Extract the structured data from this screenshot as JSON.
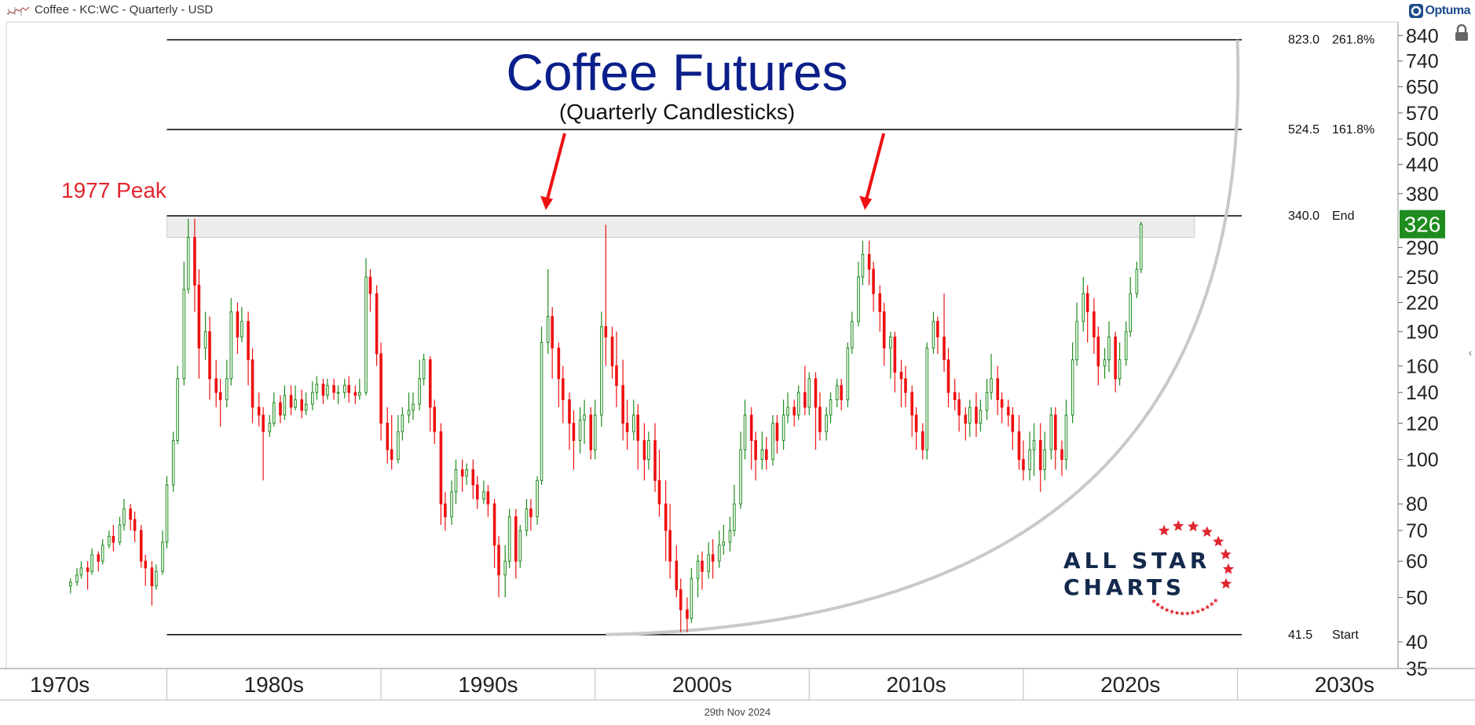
{
  "header": {
    "instrument": "Coffee - KC:WC - Quarterly - USD",
    "vendor_logo": "Optuma"
  },
  "footer": {
    "date": "29th Nov 2024"
  },
  "icons": {
    "ticker": "chart-icon",
    "lock": "lock-icon",
    "collapse": "chevron-left-icon"
  },
  "brand": {
    "line1": "ALL STAR",
    "line2": "CHARTS",
    "star_color": "#e0262f",
    "text_color": "#13294b"
  },
  "chart_data": {
    "type": "candlestick",
    "title": "Coffee Futures",
    "subtitle": "(Quarterly Candlesticks)",
    "y_scale": "log",
    "y_range": [
      35,
      900
    ],
    "x_range": [
      1969.0,
      2034.0
    ],
    "y_ticks": [
      840,
      740,
      650,
      570,
      500,
      440,
      380,
      290,
      250,
      220,
      190,
      160,
      140,
      120,
      100,
      80,
      70,
      60,
      50,
      40,
      35
    ],
    "x_labels": [
      {
        "label": "1970s",
        "year": 1971.5
      },
      {
        "label": "1980s",
        "year": 1981.5
      },
      {
        "label": "1990s",
        "year": 1991.5
      },
      {
        "label": "2000s",
        "year": 2001.5
      },
      {
        "label": "2010s",
        "year": 2011.5
      },
      {
        "label": "2020s",
        "year": 2021.5
      },
      {
        "label": "2030s",
        "year": 2031.5
      }
    ],
    "x_dividers": [
      1976.5,
      1986.5,
      1996.5,
      2006.5,
      2016.5,
      2026.5
    ],
    "current_price": 326,
    "current_price_color": "#1e8c1e",
    "up_color": "#1e8c1e",
    "down_color": "#ee1111",
    "levels": [
      {
        "value": 823.0,
        "label": "823.0",
        "tag": "261.8%"
      },
      {
        "value": 524.5,
        "label": "524.5",
        "tag": "161.8%"
      },
      {
        "value": 340.0,
        "label": "340.0",
        "tag": "End"
      },
      {
        "value": 41.5,
        "label": "41.5",
        "tag": "Start"
      }
    ],
    "resistance_zone": [
      305,
      340
    ],
    "annotations": [
      {
        "text": "1977 Peak",
        "color": "#e0262f"
      }
    ],
    "arrows": [
      {
        "year": 1994.2,
        "from": 560,
        "to": 350
      },
      {
        "year": 2009.1,
        "from": 560,
        "to": 350
      }
    ],
    "arc": {
      "start_year": 1997.0,
      "start_value": 41.5,
      "end_year": 2026.5,
      "end_value": 823
    },
    "candles": [
      [
        1972.0,
        53,
        54,
        51,
        55
      ],
      [
        1972.3,
        54,
        56,
        53,
        58
      ],
      [
        1972.5,
        56,
        58,
        55,
        60
      ],
      [
        1972.8,
        58,
        57,
        52,
        60
      ],
      [
        1973.0,
        57,
        62,
        56,
        64
      ],
      [
        1973.3,
        62,
        60,
        57,
        63
      ],
      [
        1973.5,
        60,
        65,
        59,
        67
      ],
      [
        1973.8,
        65,
        68,
        64,
        70
      ],
      [
        1974.0,
        68,
        66,
        63,
        72
      ],
      [
        1974.3,
        66,
        72,
        65,
        75
      ],
      [
        1974.5,
        72,
        78,
        70,
        82
      ],
      [
        1974.8,
        78,
        74,
        70,
        80
      ],
      [
        1975.0,
        74,
        70,
        66,
        77
      ],
      [
        1975.3,
        70,
        60,
        58,
        72
      ],
      [
        1975.5,
        60,
        58,
        53,
        62
      ],
      [
        1975.8,
        58,
        53,
        48,
        60
      ],
      [
        1976.0,
        53,
        57,
        52,
        59
      ],
      [
        1976.3,
        57,
        66,
        56,
        70
      ],
      [
        1976.5,
        66,
        88,
        64,
        92
      ],
      [
        1976.8,
        88,
        110,
        85,
        115
      ],
      [
        1977.0,
        110,
        150,
        108,
        160
      ],
      [
        1977.3,
        150,
        235,
        145,
        270
      ],
      [
        1977.5,
        235,
        305,
        230,
        335
      ],
      [
        1977.8,
        305,
        240,
        210,
        335
      ],
      [
        1978.0,
        240,
        175,
        150,
        260
      ],
      [
        1978.3,
        175,
        190,
        165,
        210
      ],
      [
        1978.5,
        190,
        150,
        135,
        205
      ],
      [
        1978.8,
        150,
        140,
        130,
        165
      ],
      [
        1979.0,
        140,
        135,
        118,
        150
      ],
      [
        1979.3,
        135,
        150,
        130,
        165
      ],
      [
        1979.5,
        150,
        210,
        145,
        225
      ],
      [
        1979.8,
        210,
        185,
        170,
        220
      ],
      [
        1980.0,
        185,
        200,
        180,
        215
      ],
      [
        1980.3,
        200,
        165,
        145,
        210
      ],
      [
        1980.5,
        165,
        130,
        120,
        175
      ],
      [
        1980.8,
        130,
        125,
        118,
        140
      ],
      [
        1981.0,
        125,
        115,
        90,
        130
      ],
      [
        1981.3,
        115,
        120,
        112,
        125
      ],
      [
        1981.5,
        120,
        133,
        118,
        140
      ],
      [
        1981.8,
        133,
        125,
        120,
        138
      ],
      [
        1982.0,
        125,
        138,
        122,
        145
      ],
      [
        1982.3,
        138,
        130,
        125,
        145
      ],
      [
        1982.5,
        130,
        135,
        128,
        145
      ],
      [
        1982.8,
        135,
        128,
        123,
        142
      ],
      [
        1983.0,
        128,
        132,
        125,
        140
      ],
      [
        1983.3,
        132,
        140,
        128,
        148
      ],
      [
        1983.5,
        140,
        146,
        135,
        152
      ],
      [
        1983.8,
        146,
        138,
        132,
        150
      ],
      [
        1984.0,
        138,
        145,
        135,
        150
      ],
      [
        1984.3,
        145,
        140,
        135,
        150
      ],
      [
        1984.5,
        140,
        140,
        132,
        145
      ],
      [
        1984.8,
        140,
        145,
        136,
        150
      ],
      [
        1985.0,
        145,
        140,
        133,
        152
      ],
      [
        1985.3,
        140,
        138,
        132,
        145
      ],
      [
        1985.5,
        138,
        140,
        135,
        150
      ],
      [
        1985.8,
        140,
        250,
        138,
        275
      ],
      [
        1986.0,
        250,
        230,
        210,
        260
      ],
      [
        1986.3,
        230,
        170,
        160,
        240
      ],
      [
        1986.5,
        170,
        120,
        110,
        180
      ],
      [
        1986.8,
        120,
        105,
        98,
        130
      ],
      [
        1987.0,
        105,
        100,
        95,
        125
      ],
      [
        1987.3,
        100,
        115,
        98,
        125
      ],
      [
        1987.5,
        115,
        125,
        110,
        130
      ],
      [
        1987.8,
        125,
        128,
        120,
        140
      ],
      [
        1988.0,
        128,
        132,
        122,
        140
      ],
      [
        1988.3,
        132,
        150,
        128,
        165
      ],
      [
        1988.5,
        150,
        165,
        145,
        170
      ],
      [
        1988.8,
        165,
        130,
        115,
        168
      ],
      [
        1989.0,
        130,
        115,
        108,
        135
      ],
      [
        1989.3,
        115,
        80,
        72,
        120
      ],
      [
        1989.5,
        80,
        75,
        70,
        85
      ],
      [
        1989.8,
        75,
        85,
        72,
        90
      ],
      [
        1990.0,
        85,
        95,
        80,
        100
      ],
      [
        1990.3,
        95,
        92,
        85,
        100
      ],
      [
        1990.5,
        92,
        95,
        88,
        98
      ],
      [
        1990.8,
        95,
        88,
        82,
        100
      ],
      [
        1991.0,
        88,
        82,
        78,
        92
      ],
      [
        1991.3,
        82,
        85,
        80,
        90
      ],
      [
        1991.5,
        85,
        80,
        75,
        88
      ],
      [
        1991.8,
        80,
        65,
        58,
        82
      ],
      [
        1992.0,
        65,
        56,
        50,
        68
      ],
      [
        1992.3,
        56,
        60,
        50,
        65
      ],
      [
        1992.5,
        60,
        75,
        58,
        78
      ],
      [
        1992.8,
        75,
        60,
        55,
        78
      ],
      [
        1993.0,
        60,
        70,
        58,
        72
      ],
      [
        1993.3,
        70,
        78,
        68,
        82
      ],
      [
        1993.5,
        78,
        75,
        70,
        82
      ],
      [
        1993.8,
        75,
        90,
        72,
        92
      ],
      [
        1994.0,
        90,
        180,
        88,
        195
      ],
      [
        1994.3,
        180,
        205,
        170,
        260
      ],
      [
        1994.5,
        205,
        175,
        150,
        215
      ],
      [
        1994.8,
        175,
        150,
        130,
        180
      ],
      [
        1995.0,
        150,
        135,
        120,
        160
      ],
      [
        1995.3,
        135,
        120,
        105,
        140
      ],
      [
        1995.5,
        120,
        110,
        95,
        128
      ],
      [
        1995.8,
        110,
        122,
        103,
        130
      ],
      [
        1996.0,
        122,
        125,
        108,
        135
      ],
      [
        1996.3,
        125,
        105,
        100,
        130
      ],
      [
        1996.5,
        105,
        125,
        100,
        135
      ],
      [
        1996.8,
        125,
        195,
        118,
        210
      ],
      [
        1997.0,
        195,
        185,
        160,
        325
      ],
      [
        1997.3,
        185,
        160,
        150,
        195
      ],
      [
        1997.5,
        160,
        145,
        130,
        190
      ],
      [
        1997.8,
        145,
        120,
        110,
        165
      ],
      [
        1998.0,
        120,
        115,
        105,
        135
      ],
      [
        1998.3,
        115,
        125,
        110,
        135
      ],
      [
        1998.5,
        125,
        110,
        95,
        132
      ],
      [
        1998.8,
        110,
        100,
        90,
        120
      ],
      [
        1999.0,
        100,
        110,
        95,
        115
      ],
      [
        1999.3,
        110,
        90,
        85,
        120
      ],
      [
        1999.5,
        90,
        80,
        75,
        105
      ],
      [
        1999.8,
        80,
        70,
        60,
        90
      ],
      [
        2000.0,
        70,
        60,
        55,
        80
      ],
      [
        2000.3,
        60,
        52,
        50,
        65
      ],
      [
        2000.5,
        52,
        47,
        42,
        55
      ],
      [
        2000.8,
        47,
        45,
        42,
        50
      ],
      [
        2001.0,
        45,
        55,
        44,
        58
      ],
      [
        2001.3,
        55,
        60,
        50,
        62
      ],
      [
        2001.5,
        60,
        57,
        52,
        63
      ],
      [
        2001.8,
        57,
        62,
        55,
        66
      ],
      [
        2002.0,
        62,
        60,
        55,
        67
      ],
      [
        2002.3,
        60,
        65,
        58,
        70
      ],
      [
        2002.5,
        65,
        66,
        62,
        72
      ],
      [
        2002.8,
        66,
        70,
        63,
        75
      ],
      [
        2003.0,
        70,
        80,
        68,
        88
      ],
      [
        2003.3,
        80,
        105,
        78,
        115
      ],
      [
        2003.5,
        105,
        125,
        100,
        135
      ],
      [
        2003.8,
        125,
        110,
        95,
        130
      ],
      [
        2004.0,
        110,
        100,
        90,
        115
      ],
      [
        2004.3,
        100,
        105,
        95,
        115
      ],
      [
        2004.5,
        105,
        100,
        95,
        112
      ],
      [
        2004.8,
        100,
        120,
        97,
        125
      ],
      [
        2005.0,
        120,
        110,
        103,
        125
      ],
      [
        2005.3,
        110,
        125,
        105,
        135
      ],
      [
        2005.5,
        125,
        130,
        120,
        140
      ],
      [
        2005.8,
        130,
        125,
        118,
        135
      ],
      [
        2006.0,
        125,
        140,
        122,
        145
      ],
      [
        2006.3,
        140,
        130,
        125,
        160
      ],
      [
        2006.5,
        130,
        150,
        125,
        155
      ],
      [
        2006.8,
        150,
        130,
        105,
        155
      ],
      [
        2007.0,
        130,
        115,
        110,
        140
      ],
      [
        2007.3,
        115,
        125,
        110,
        130
      ],
      [
        2007.5,
        125,
        135,
        120,
        140
      ],
      [
        2007.8,
        135,
        145,
        130,
        150
      ],
      [
        2008.0,
        145,
        135,
        128,
        150
      ],
      [
        2008.3,
        135,
        175,
        130,
        180
      ],
      [
        2008.5,
        175,
        200,
        170,
        210
      ],
      [
        2008.8,
        200,
        250,
        195,
        270
      ],
      [
        2009.0,
        250,
        280,
        240,
        300
      ],
      [
        2009.3,
        280,
        260,
        240,
        300
      ],
      [
        2009.5,
        260,
        230,
        210,
        270
      ],
      [
        2009.8,
        230,
        210,
        190,
        240
      ],
      [
        2010.0,
        210,
        175,
        160,
        220
      ],
      [
        2010.3,
        175,
        185,
        150,
        190
      ],
      [
        2010.5,
        185,
        155,
        140,
        190
      ],
      [
        2010.8,
        155,
        150,
        130,
        165
      ],
      [
        2011.0,
        150,
        140,
        130,
        160
      ],
      [
        2011.3,
        140,
        125,
        112,
        145
      ],
      [
        2011.5,
        125,
        115,
        105,
        130
      ],
      [
        2011.8,
        115,
        105,
        100,
        120
      ],
      [
        2012.0,
        105,
        175,
        100,
        180
      ],
      [
        2012.3,
        175,
        200,
        170,
        210
      ],
      [
        2012.5,
        200,
        185,
        170,
        205
      ],
      [
        2012.8,
        185,
        165,
        155,
        230
      ],
      [
        2013.0,
        165,
        140,
        130,
        175
      ],
      [
        2013.3,
        140,
        135,
        128,
        150
      ],
      [
        2013.5,
        135,
        125,
        115,
        140
      ],
      [
        2013.8,
        125,
        120,
        110,
        130
      ],
      [
        2014.0,
        120,
        130,
        112,
        135
      ],
      [
        2014.3,
        130,
        120,
        112,
        140
      ],
      [
        2014.5,
        120,
        128,
        115,
        135
      ],
      [
        2014.8,
        128,
        140,
        122,
        150
      ],
      [
        2015.0,
        140,
        150,
        135,
        170
      ],
      [
        2015.3,
        150,
        135,
        125,
        160
      ],
      [
        2015.5,
        135,
        130,
        120,
        140
      ],
      [
        2015.8,
        130,
        125,
        118,
        135
      ],
      [
        2016.0,
        125,
        115,
        105,
        130
      ],
      [
        2016.3,
        115,
        100,
        95,
        125
      ],
      [
        2016.5,
        100,
        95,
        90,
        110
      ],
      [
        2016.8,
        95,
        105,
        90,
        115
      ],
      [
        2017.0,
        105,
        110,
        92,
        120
      ],
      [
        2017.3,
        110,
        95,
        85,
        120
      ],
      [
        2017.5,
        95,
        105,
        90,
        115
      ],
      [
        2017.8,
        105,
        125,
        100,
        130
      ],
      [
        2018.0,
        125,
        105,
        95,
        130
      ],
      [
        2018.3,
        105,
        100,
        92,
        110
      ],
      [
        2018.5,
        100,
        125,
        95,
        135
      ],
      [
        2018.8,
        125,
        165,
        120,
        180
      ],
      [
        2019.0,
        165,
        200,
        160,
        220
      ],
      [
        2019.3,
        200,
        230,
        190,
        250
      ],
      [
        2019.5,
        230,
        210,
        180,
        240
      ],
      [
        2019.8,
        210,
        185,
        170,
        225
      ],
      [
        2020.0,
        185,
        160,
        145,
        195
      ],
      [
        2020.3,
        160,
        165,
        150,
        175
      ],
      [
        2020.5,
        165,
        185,
        155,
        200
      ],
      [
        2020.8,
        185,
        150,
        140,
        190
      ],
      [
        2021.0,
        150,
        165,
        145,
        180
      ],
      [
        2021.3,
        165,
        190,
        160,
        200
      ],
      [
        2021.5,
        190,
        230,
        185,
        250
      ],
      [
        2021.8,
        230,
        260,
        225,
        270
      ],
      [
        2022.0,
        260,
        326,
        255,
        330
      ]
    ]
  }
}
